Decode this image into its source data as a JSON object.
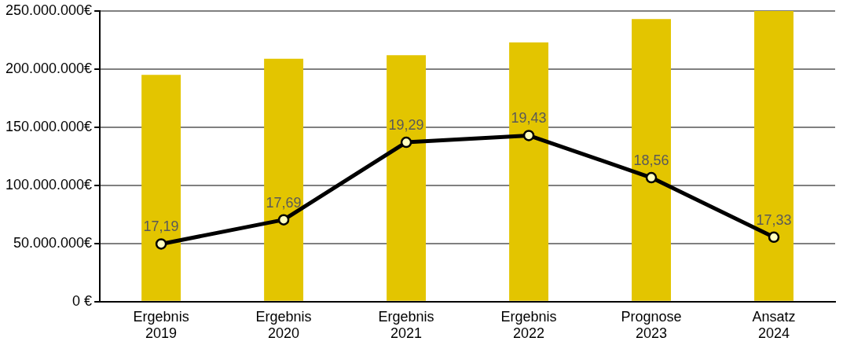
{
  "chart_data": {
    "type": "bar",
    "categories": [
      "Ergebnis\n2019",
      "Ergebnis\n2020",
      "Ergebnis\n2021",
      "Ergebnis\n2022",
      "Prognose\n2023",
      "Ansatz\n2024"
    ],
    "series": [
      {
        "color": "#e3c500",
        "values": [
          195000000,
          209000000,
          212000000,
          223000000,
          243000000,
          250000000
        ]
      },
      {
        "type": "line",
        "axis": "y2",
        "color": "#000000",
        "marker": "circle",
        "value_labels": [
          "17,19",
          "17,69",
          "19,29",
          "19,43",
          "18,56",
          "17,33"
        ],
        "values": [
          17.19,
          17.69,
          19.29,
          19.43,
          18.56,
          17.33
        ]
      }
    ],
    "ylim": [
      0,
      250000000
    ],
    "yticks": [
      {
        "value": 0,
        "label": "0 €"
      },
      {
        "value": 50000000,
        "label": "50.000.000€"
      },
      {
        "value": 100000000,
        "label": "100.000.000€"
      },
      {
        "value": 150000000,
        "label": "150.000.000€"
      },
      {
        "value": 200000000,
        "label": "200.000.000€"
      },
      {
        "value": 250000000,
        "label": "250.000.000€"
      }
    ],
    "y2lim": [
      16,
      22
    ],
    "grid": "y",
    "legend": false
  }
}
